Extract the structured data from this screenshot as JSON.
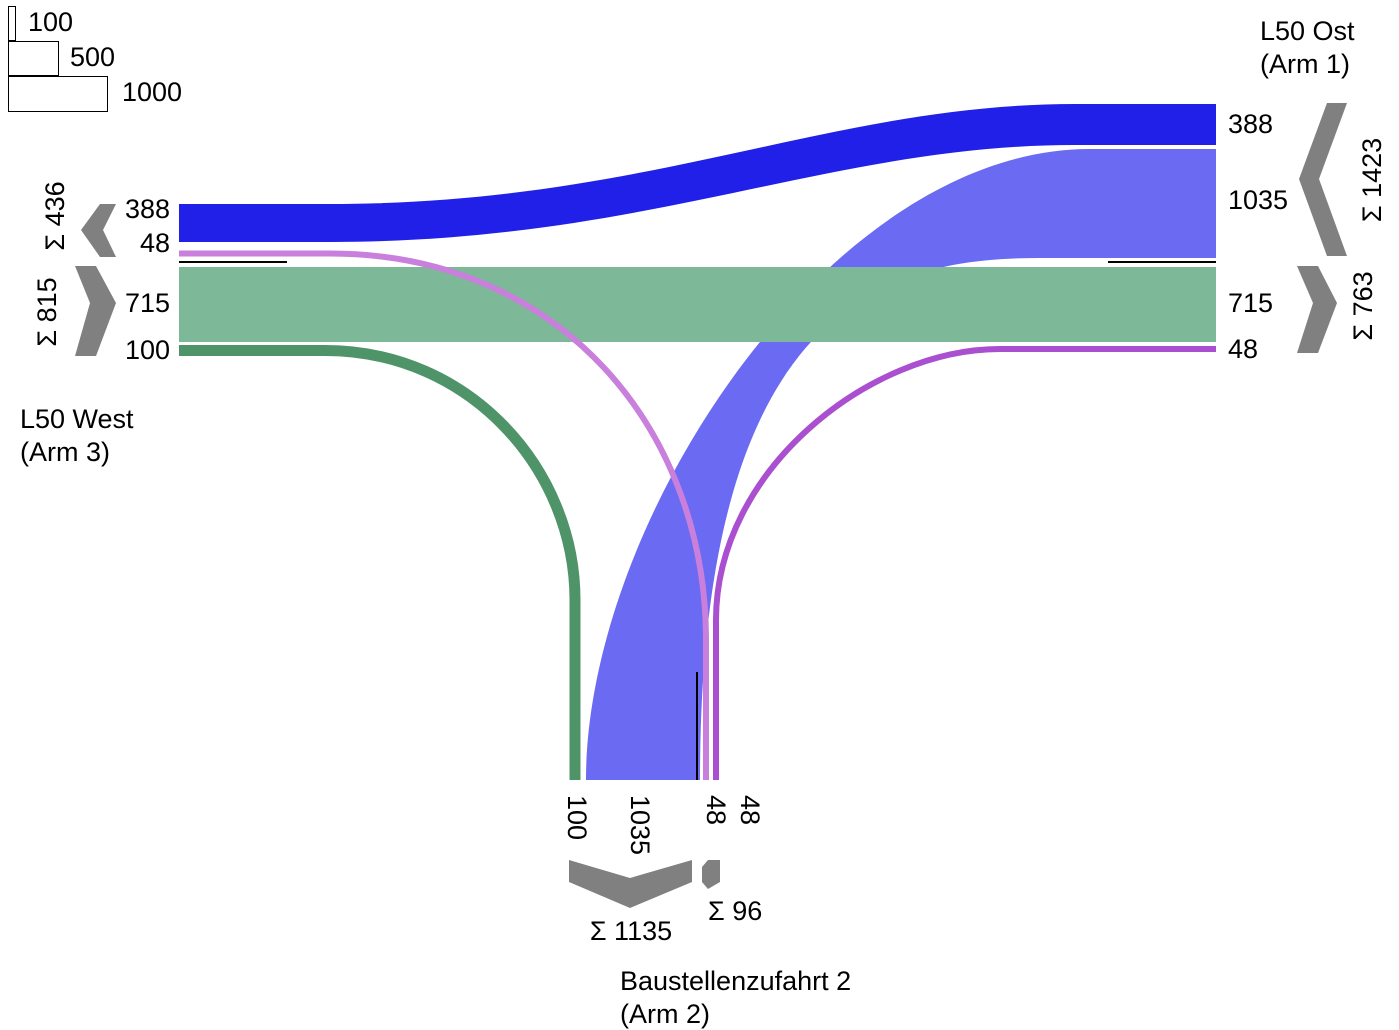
{
  "arms": {
    "east": {
      "name": "L50 Ost",
      "sub": "(Arm 1)"
    },
    "south": {
      "name": "Baustellenzufahrt 2",
      "sub": "(Arm 2)"
    },
    "west": {
      "name": "L50 West",
      "sub": "(Arm 3)"
    }
  },
  "scale_legend": [
    {
      "value": 100,
      "label": "100"
    },
    {
      "value": 500,
      "label": "500"
    },
    {
      "value": 1000,
      "label": "1000"
    }
  ],
  "flows": [
    {
      "id": "east-to-west",
      "from": "L50 Ost (Arm 1)",
      "to": "L50 West (Arm 3)",
      "volume": 388,
      "color": "#2020e8"
    },
    {
      "id": "east-to-south",
      "from": "L50 Ost (Arm 1)",
      "to": "Baustellenzufahrt 2 (Arm 2)",
      "volume": 1035,
      "color": "#6a6af2"
    },
    {
      "id": "west-to-east",
      "from": "L50 West (Arm 3)",
      "to": "L50 Ost (Arm 1)",
      "volume": 715,
      "color": "#7db898"
    },
    {
      "id": "west-to-south",
      "from": "L50 West (Arm 3)",
      "to": "Baustellenzufahrt 2 (Arm 2)",
      "volume": 100,
      "color": "#4e9468"
    },
    {
      "id": "south-to-west",
      "from": "Baustellenzufahrt 2 (Arm 2)",
      "to": "L50 West (Arm 3)",
      "volume": 48,
      "color": "#c97fdc"
    },
    {
      "id": "south-to-east",
      "from": "Baustellenzufahrt 2 (Arm 2)",
      "to": "L50 Ost (Arm 1)",
      "volume": 48,
      "color": "#a94fd0"
    }
  ],
  "labels": {
    "west": {
      "v388": "388",
      "v48": "48",
      "v715": "715",
      "v100": "100",
      "sum_in": "Σ 436",
      "sum_out": "Σ 815"
    },
    "east": {
      "v388": "388",
      "v1035": "1035",
      "v715": "715",
      "v48": "48",
      "sum_out": "Σ 1423",
      "sum_in": "Σ 763"
    },
    "south": {
      "v100": "100",
      "v1035": "1035",
      "v48a": "48",
      "v48b": "48",
      "sum_in": "Σ 1135",
      "sum_out": "Σ 96"
    }
  },
  "colors": {
    "arrow": "#808080",
    "blue_dark": "#2020e8",
    "blue_light": "#6a6af2",
    "green_light": "#7db898",
    "green_dark": "#4e9468",
    "violet_light": "#c97fdc",
    "violet_dark": "#a94fd0"
  }
}
